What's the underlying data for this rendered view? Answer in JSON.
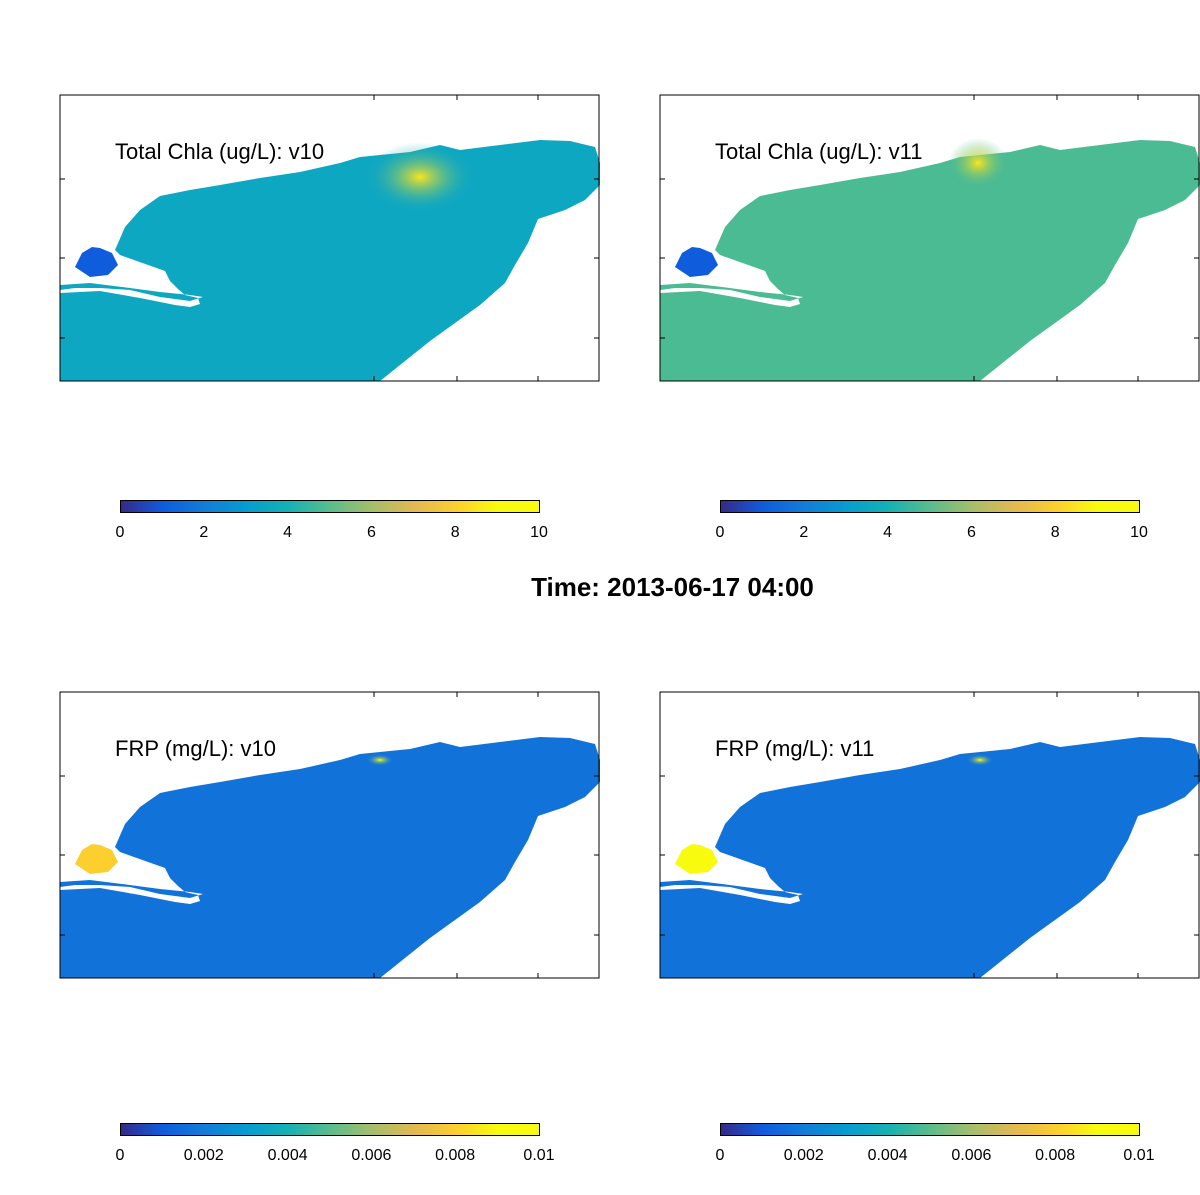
{
  "suptitle": "Time: 2013-06-17 04:00",
  "chart_data": [
    {
      "type": "heatmap",
      "title": "Total Chla (ug/L): v10",
      "colorbar": {
        "ticks": [
          "0",
          "2",
          "4",
          "6",
          "8",
          "10"
        ],
        "clim": [
          0,
          10
        ]
      },
      "field_summary": {
        "background": 3.5,
        "hotspot": 8.5,
        "west_basin": 1.0
      }
    },
    {
      "type": "heatmap",
      "title": "Total Chla (ug/L): v11",
      "colorbar": {
        "ticks": [
          "0",
          "2",
          "4",
          "6",
          "8",
          "10"
        ],
        "clim": [
          0,
          10
        ]
      },
      "field_summary": {
        "background": 4.8,
        "hotspot": 8.5,
        "west_basin": 1.0
      }
    },
    {
      "type": "heatmap",
      "title": "FRP (mg/L): v10",
      "colorbar": {
        "ticks": [
          "0",
          "0.002",
          "0.004",
          "0.006",
          "0.008",
          "0.01"
        ],
        "clim": [
          0,
          0.01
        ]
      },
      "field_summary": {
        "background": 0.0017,
        "hotspot": 0.009,
        "west_basin": 0.008
      }
    },
    {
      "type": "heatmap",
      "title": "FRP (mg/L): v11",
      "colorbar": {
        "ticks": [
          "0",
          "0.002",
          "0.004",
          "0.006",
          "0.008",
          "0.01"
        ],
        "clim": [
          0,
          0.01
        ]
      },
      "field_summary": {
        "background": 0.0017,
        "hotspot": 0.009,
        "west_basin": 0.0098
      }
    }
  ]
}
